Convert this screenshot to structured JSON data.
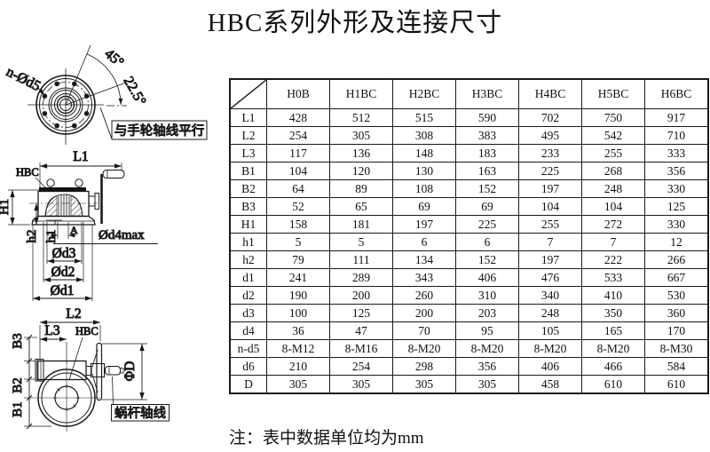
{
  "title": "HBC系列外形及连接尺寸",
  "note": "注：表中数据单位均为mm",
  "drawing": {
    "top_view": {
      "bolt_label": "n-Ød5",
      "angle_outer": "45°",
      "angle_inner": "22.5°",
      "callout": "与手轮轴线平行"
    },
    "side_view": {
      "dim_l1": "L1",
      "model": "HBC",
      "dim_h1_cap": "H1",
      "dim_h2": "h2",
      "dim_h1": "h1",
      "dim_a": "A",
      "dim_d4max": "Ød4max",
      "dim_d3": "Ød3",
      "dim_d2": "Ød2",
      "dim_d1": "Ød1"
    },
    "front_view": {
      "dim_l2": "L2",
      "dim_l3": "L3",
      "model": "HBC",
      "dim_b3": "B3",
      "dim_b2": "B2",
      "dim_b1": "B1",
      "dim_dia": "ΦD",
      "callout": "蜗杆轴线"
    }
  },
  "table": {
    "columns": [
      "H0B",
      "H1BC",
      "H2BC",
      "H3BC",
      "H4BC",
      "H5BC",
      "H6BC"
    ],
    "rows": [
      {
        "label": "L1",
        "values": [
          "428",
          "512",
          "515",
          "590",
          "702",
          "750",
          "917"
        ]
      },
      {
        "label": "L2",
        "values": [
          "254",
          "305",
          "308",
          "383",
          "495",
          "542",
          "710"
        ]
      },
      {
        "label": "L3",
        "values": [
          "117",
          "136",
          "148",
          "183",
          "233",
          "255",
          "333"
        ]
      },
      {
        "label": "B1",
        "values": [
          "104",
          "120",
          "130",
          "163",
          "225",
          "268",
          "356"
        ]
      },
      {
        "label": "B2",
        "values": [
          "64",
          "89",
          "108",
          "152",
          "197",
          "248",
          "330"
        ]
      },
      {
        "label": "B3",
        "values": [
          "52",
          "65",
          "69",
          "69",
          "104",
          "104",
          "125"
        ]
      },
      {
        "label": "H1",
        "values": [
          "158",
          "181",
          "197",
          "225",
          "255",
          "272",
          "330"
        ]
      },
      {
        "label": "h1",
        "values": [
          "5",
          "5",
          "6",
          "6",
          "7",
          "7",
          "12"
        ]
      },
      {
        "label": "h2",
        "values": [
          "79",
          "111",
          "134",
          "152",
          "197",
          "222",
          "266"
        ]
      },
      {
        "label": "d1",
        "values": [
          "241",
          "289",
          "343",
          "406",
          "476",
          "533",
          "667"
        ]
      },
      {
        "label": "d2",
        "values": [
          "190",
          "200",
          "260",
          "310",
          "340",
          "410",
          "530"
        ]
      },
      {
        "label": "d3",
        "values": [
          "100",
          "125",
          "200",
          "203",
          "248",
          "350",
          "360"
        ]
      },
      {
        "label": "d4",
        "values": [
          "36",
          "47",
          "70",
          "95",
          "105",
          "165",
          "170"
        ]
      },
      {
        "label": "n-d5",
        "values": [
          "8-M12",
          "8-M16",
          "8-M20",
          "8-M20",
          "8-M20",
          "8-M20",
          "8-M30"
        ]
      },
      {
        "label": "d6",
        "values": [
          "210",
          "254",
          "298",
          "356",
          "406",
          "466",
          "584"
        ]
      },
      {
        "label": "D",
        "values": [
          "305",
          "305",
          "305",
          "305",
          "458",
          "610",
          "610"
        ]
      }
    ]
  }
}
